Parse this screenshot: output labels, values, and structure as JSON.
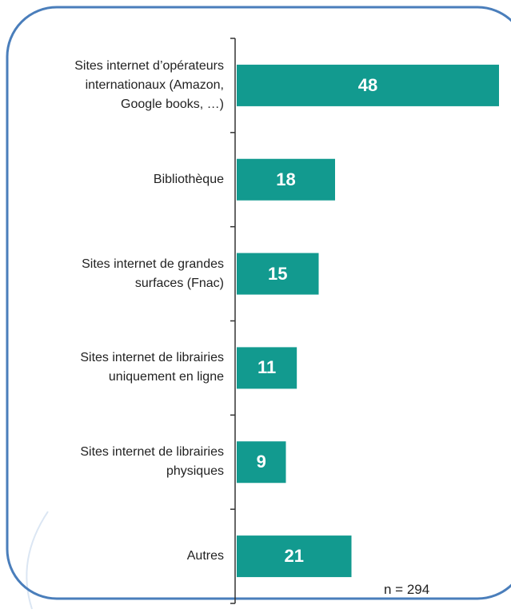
{
  "chart_data": {
    "type": "bar",
    "orientation": "horizontal",
    "categories": [
      "Sites internet d’opérateurs internationaux (Amazon, Google books, …)",
      "Bibliothèque",
      "Sites internet de grandes surfaces (Fnac)",
      "Sites internet de librairies uniquement en ligne",
      "Sites internet de librairies physiques",
      "Autres"
    ],
    "values": [
      48,
      18,
      15,
      11,
      9,
      21
    ],
    "color": "#129a8f",
    "note": "n = 294"
  }
}
